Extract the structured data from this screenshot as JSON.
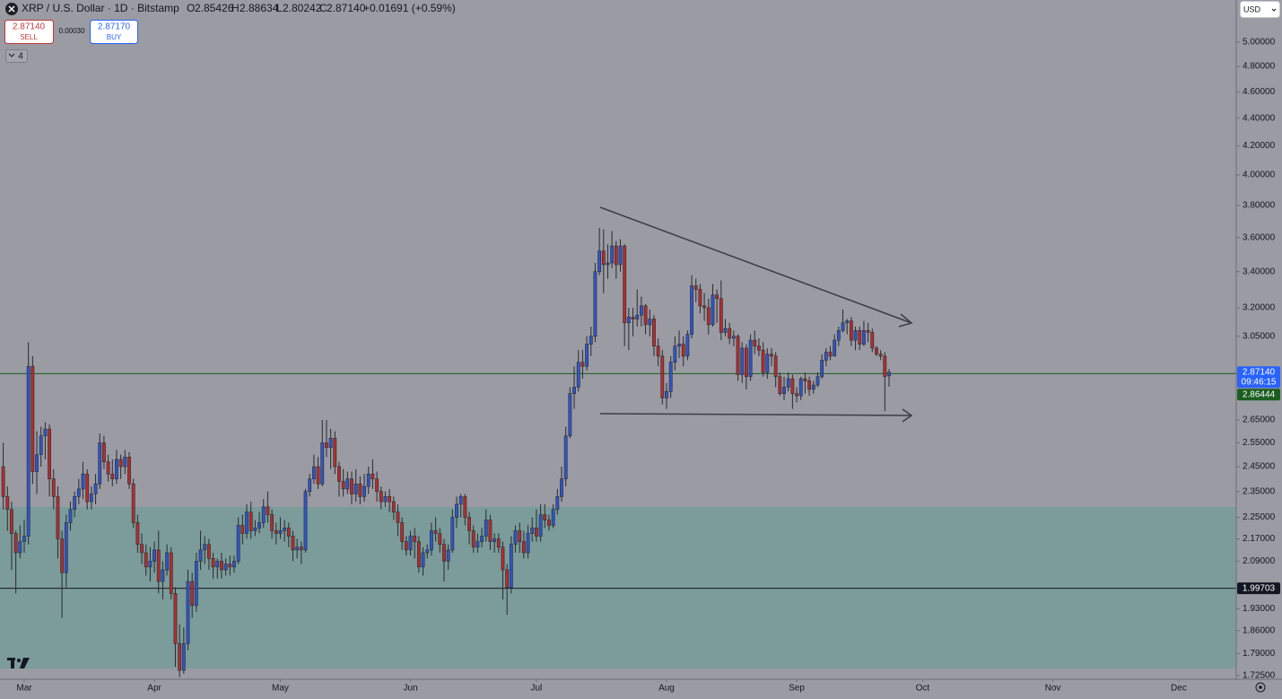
{
  "header": {
    "title": "XRP / U.S. Dollar · 1D · Bitstamp",
    "o_label": "O",
    "o": "2.85426",
    "h_label": "H",
    "h": "2.88634",
    "l_label": "L",
    "l": "2.80242",
    "c_label": "C",
    "c": "2.87140",
    "change": "+0.01691 (+0.59%)",
    "sell_price": "2.87140",
    "sell": "SELL",
    "spread": "0.00030",
    "buy_price": "2.87170",
    "buy": "BUY",
    "indicators": "4",
    "currency": "USD"
  },
  "chart_data": {
    "type": "candlestick",
    "log_scale": true,
    "up_color": "#2f56c8",
    "down_color": "#b32d2d",
    "xlim": [
      -0.77,
      293.7
    ],
    "xticks": [
      {
        "value": 5,
        "label": "Mar"
      },
      {
        "value": 36,
        "label": "Apr"
      },
      {
        "value": 66,
        "label": "May"
      },
      {
        "value": 97,
        "label": "Jun"
      },
      {
        "value": 127,
        "label": "Jul"
      },
      {
        "value": 158,
        "label": "Aug"
      },
      {
        "value": 189,
        "label": "Sep"
      },
      {
        "value": 219,
        "label": "Oct"
      },
      {
        "value": 250,
        "label": "Nov"
      },
      {
        "value": 280,
        "label": "Dec"
      }
    ],
    "ylim": [
      1.714,
      5.367
    ],
    "yticks": [
      {
        "value": 1.725,
        "label": "1.72500"
      },
      {
        "value": 1.79,
        "label": "1.79000"
      },
      {
        "value": 1.86,
        "label": "1.86000"
      },
      {
        "value": 1.93,
        "label": "1.93000"
      },
      {
        "value": 2.09,
        "label": "2.09000"
      },
      {
        "value": 2.17,
        "label": "2.17000"
      },
      {
        "value": 2.25,
        "label": "2.25000"
      },
      {
        "value": 2.35,
        "label": "2.35000"
      },
      {
        "value": 2.45,
        "label": "2.45000"
      },
      {
        "value": 2.55,
        "label": "2.55000"
      },
      {
        "value": 2.65,
        "label": "2.65000"
      },
      {
        "value": 3.05,
        "label": "3.05000"
      },
      {
        "value": 3.2,
        "label": "3.20000"
      },
      {
        "value": 3.4,
        "label": "3.40000"
      },
      {
        "value": 3.6,
        "label": "3.60000"
      },
      {
        "value": 3.8,
        "label": "3.80000"
      },
      {
        "value": 4.0,
        "label": "4.00000"
      },
      {
        "value": 4.2,
        "label": "4.20000"
      },
      {
        "value": 4.4,
        "label": "4.40000"
      },
      {
        "value": 4.6,
        "label": "4.60000"
      },
      {
        "value": 4.8,
        "label": "4.80000"
      },
      {
        "value": 5.0,
        "label": "5.00000"
      }
    ],
    "price_labels": [
      {
        "value": 2.8714,
        "label": "2.87140",
        "sub": "09:46:15",
        "color": "#2962ff",
        "line": false
      },
      {
        "value": 2.86444,
        "label": "2.86444",
        "color": "#1b5e20",
        "line": true
      },
      {
        "value": 1.99703,
        "label": "1.99703",
        "color": "#131722",
        "line": true
      }
    ],
    "candles": [
      [
        2.45,
        2.55,
        2.28,
        2.33
      ],
      [
        2.33,
        2.37,
        2.2,
        2.28
      ],
      [
        2.28,
        2.31,
        2.06,
        2.19
      ],
      [
        2.19,
        2.2,
        1.98,
        2.12
      ],
      [
        2.12,
        2.22,
        2.1,
        2.16
      ],
      [
        2.16,
        2.24,
        2.12,
        2.18
      ],
      [
        2.18,
        3.02,
        2.15,
        2.9
      ],
      [
        2.9,
        2.95,
        2.38,
        2.43
      ],
      [
        2.43,
        2.6,
        2.34,
        2.5
      ],
      [
        2.5,
        2.62,
        2.45,
        2.58
      ],
      [
        2.58,
        2.64,
        2.48,
        2.61
      ],
      [
        2.61,
        2.63,
        2.33,
        2.4
      ],
      [
        2.4,
        2.44,
        2.28,
        2.33
      ],
      [
        2.33,
        2.37,
        2.1,
        2.17
      ],
      [
        2.17,
        2.2,
        1.9,
        2.05
      ],
      [
        2.05,
        2.26,
        2.0,
        2.23
      ],
      [
        2.23,
        2.31,
        2.2,
        2.28
      ],
      [
        2.28,
        2.35,
        2.25,
        2.33
      ],
      [
        2.33,
        2.4,
        2.3,
        2.36
      ],
      [
        2.36,
        2.47,
        2.32,
        2.42
      ],
      [
        2.42,
        2.44,
        2.28,
        2.31
      ],
      [
        2.31,
        2.37,
        2.28,
        2.34
      ],
      [
        2.34,
        2.42,
        2.3,
        2.38
      ],
      [
        2.38,
        2.59,
        2.36,
        2.55
      ],
      [
        2.55,
        2.58,
        2.44,
        2.47
      ],
      [
        2.47,
        2.5,
        2.39,
        2.42
      ],
      [
        2.42,
        2.48,
        2.37,
        2.4
      ],
      [
        2.4,
        2.52,
        2.38,
        2.48
      ],
      [
        2.48,
        2.5,
        2.4,
        2.45
      ],
      [
        2.45,
        2.52,
        2.42,
        2.49
      ],
      [
        2.49,
        2.51,
        2.36,
        2.38
      ],
      [
        2.38,
        2.4,
        2.21,
        2.23
      ],
      [
        2.23,
        2.26,
        2.12,
        2.15
      ],
      [
        2.15,
        2.19,
        2.08,
        2.12
      ],
      [
        2.12,
        2.15,
        2.04,
        2.07
      ],
      [
        2.07,
        2.14,
        2.02,
        2.09
      ],
      [
        2.09,
        2.16,
        2.05,
        2.13
      ],
      [
        2.13,
        2.2,
        1.98,
        2.02
      ],
      [
        2.02,
        2.09,
        1.96,
        2.06
      ],
      [
        2.06,
        2.15,
        2.04,
        2.12
      ],
      [
        2.12,
        2.14,
        1.96,
        1.98
      ],
      [
        1.98,
        2.0,
        1.75,
        1.82
      ],
      [
        1.82,
        1.88,
        1.72,
        1.74
      ],
      [
        1.74,
        1.87,
        1.73,
        1.82
      ],
      [
        1.82,
        2.06,
        1.8,
        2.02
      ],
      [
        2.02,
        2.05,
        1.9,
        1.94
      ],
      [
        1.94,
        2.12,
        1.92,
        2.09
      ],
      [
        2.09,
        2.2,
        2.06,
        2.13
      ],
      [
        2.13,
        2.18,
        2.08,
        2.15
      ],
      [
        2.15,
        2.17,
        2.06,
        2.1
      ],
      [
        2.1,
        2.12,
        2.03,
        2.07
      ],
      [
        2.07,
        2.1,
        2.03,
        2.09
      ],
      [
        2.09,
        2.12,
        2.03,
        2.06
      ],
      [
        2.06,
        2.1,
        2.04,
        2.08
      ],
      [
        2.08,
        2.11,
        2.04,
        2.07
      ],
      [
        2.07,
        2.11,
        2.05,
        2.09
      ],
      [
        2.09,
        2.25,
        2.08,
        2.22
      ],
      [
        2.22,
        2.26,
        2.15,
        2.19
      ],
      [
        2.19,
        2.3,
        2.17,
        2.27
      ],
      [
        2.27,
        2.31,
        2.17,
        2.2
      ],
      [
        2.2,
        2.24,
        2.18,
        2.21
      ],
      [
        2.21,
        2.27,
        2.19,
        2.23
      ],
      [
        2.23,
        2.32,
        2.21,
        2.29
      ],
      [
        2.29,
        2.35,
        2.23,
        2.26
      ],
      [
        2.26,
        2.28,
        2.17,
        2.2
      ],
      [
        2.2,
        2.23,
        2.15,
        2.19
      ],
      [
        2.19,
        2.25,
        2.17,
        2.2
      ],
      [
        2.2,
        2.24,
        2.16,
        2.21
      ],
      [
        2.21,
        2.23,
        2.14,
        2.18
      ],
      [
        2.18,
        2.2,
        2.09,
        2.13
      ],
      [
        2.13,
        2.17,
        2.1,
        2.14
      ],
      [
        2.14,
        2.16,
        2.08,
        2.13
      ],
      [
        2.13,
        2.36,
        2.12,
        2.35
      ],
      [
        2.35,
        2.42,
        2.33,
        2.4
      ],
      [
        2.4,
        2.5,
        2.38,
        2.45
      ],
      [
        2.45,
        2.49,
        2.36,
        2.38
      ],
      [
        2.38,
        2.65,
        2.37,
        2.55
      ],
      [
        2.55,
        2.65,
        2.49,
        2.53
      ],
      [
        2.53,
        2.61,
        2.44,
        2.57
      ],
      [
        2.57,
        2.6,
        2.42,
        2.45
      ],
      [
        2.45,
        2.47,
        2.33,
        2.39
      ],
      [
        2.39,
        2.44,
        2.33,
        2.36
      ],
      [
        2.36,
        2.43,
        2.34,
        2.4
      ],
      [
        2.4,
        2.43,
        2.3,
        2.34
      ],
      [
        2.34,
        2.44,
        2.31,
        2.38
      ],
      [
        2.38,
        2.41,
        2.3,
        2.33
      ],
      [
        2.33,
        2.42,
        2.31,
        2.37
      ],
      [
        2.37,
        2.45,
        2.34,
        2.42
      ],
      [
        2.42,
        2.48,
        2.36,
        2.4
      ],
      [
        2.4,
        2.43,
        2.31,
        2.35
      ],
      [
        2.35,
        2.37,
        2.28,
        2.31
      ],
      [
        2.31,
        2.35,
        2.29,
        2.33
      ],
      [
        2.33,
        2.36,
        2.27,
        2.31
      ],
      [
        2.31,
        2.33,
        2.24,
        2.27
      ],
      [
        2.27,
        2.3,
        2.18,
        2.23
      ],
      [
        2.23,
        2.25,
        2.13,
        2.16
      ],
      [
        2.16,
        2.18,
        2.11,
        2.13
      ],
      [
        2.13,
        2.2,
        2.11,
        2.18
      ],
      [
        2.18,
        2.21,
        2.1,
        2.16
      ],
      [
        2.16,
        2.18,
        2.05,
        2.07
      ],
      [
        2.07,
        2.14,
        2.04,
        2.12
      ],
      [
        2.12,
        2.15,
        2.1,
        2.13
      ],
      [
        2.13,
        2.23,
        2.11,
        2.2
      ],
      [
        2.2,
        2.25,
        2.16,
        2.19
      ],
      [
        2.19,
        2.21,
        2.12,
        2.15
      ],
      [
        2.15,
        2.17,
        2.02,
        2.09
      ],
      [
        2.09,
        2.15,
        2.06,
        2.13
      ],
      [
        2.13,
        2.28,
        2.12,
        2.25
      ],
      [
        2.25,
        2.33,
        2.21,
        2.3
      ],
      [
        2.3,
        2.34,
        2.25,
        2.33
      ],
      [
        2.33,
        2.34,
        2.22,
        2.25
      ],
      [
        2.25,
        2.27,
        2.15,
        2.2
      ],
      [
        2.2,
        2.22,
        2.12,
        2.14
      ],
      [
        2.14,
        2.19,
        2.12,
        2.16
      ],
      [
        2.16,
        2.21,
        2.14,
        2.18
      ],
      [
        2.18,
        2.28,
        2.16,
        2.24
      ],
      [
        2.24,
        2.26,
        2.13,
        2.16
      ],
      [
        2.16,
        2.19,
        2.12,
        2.17
      ],
      [
        2.17,
        2.19,
        2.12,
        2.14
      ],
      [
        2.14,
        2.16,
        1.96,
        2.06
      ],
      [
        2.06,
        2.08,
        1.91,
        2.0
      ],
      [
        2.0,
        2.18,
        1.98,
        2.15
      ],
      [
        2.15,
        2.22,
        2.12,
        2.2
      ],
      [
        2.2,
        2.23,
        2.12,
        2.16
      ],
      [
        2.16,
        2.2,
        2.1,
        2.12
      ],
      [
        2.12,
        2.22,
        2.1,
        2.19
      ],
      [
        2.19,
        2.25,
        2.16,
        2.21
      ],
      [
        2.21,
        2.28,
        2.16,
        2.18
      ],
      [
        2.18,
        2.3,
        2.16,
        2.26
      ],
      [
        2.26,
        2.3,
        2.21,
        2.24
      ],
      [
        2.24,
        2.26,
        2.2,
        2.22
      ],
      [
        2.22,
        2.3,
        2.21,
        2.28
      ],
      [
        2.28,
        2.36,
        2.26,
        2.33
      ],
      [
        2.33,
        2.45,
        2.31,
        2.4
      ],
      [
        2.4,
        2.62,
        2.37,
        2.58
      ],
      [
        2.58,
        2.8,
        2.57,
        2.77
      ],
      [
        2.77,
        2.9,
        2.7,
        2.8
      ],
      [
        2.8,
        2.98,
        2.78,
        2.92
      ],
      [
        2.92,
        2.98,
        2.84,
        2.9
      ],
      [
        2.9,
        3.05,
        2.88,
        3.01
      ],
      [
        3.01,
        3.1,
        2.95,
        3.05
      ],
      [
        3.05,
        3.45,
        3.02,
        3.4
      ],
      [
        3.4,
        3.66,
        3.38,
        3.52
      ],
      [
        3.52,
        3.65,
        3.28,
        3.44
      ],
      [
        3.44,
        3.56,
        3.36,
        3.45
      ],
      [
        3.45,
        3.64,
        3.42,
        3.55
      ],
      [
        3.55,
        3.58,
        3.36,
        3.44
      ],
      [
        3.44,
        3.59,
        3.4,
        3.55
      ],
      [
        3.55,
        3.56,
        3.0,
        3.12
      ],
      [
        3.12,
        3.2,
        2.98,
        3.15
      ],
      [
        3.15,
        3.2,
        3.05,
        3.14
      ],
      [
        3.14,
        3.3,
        3.1,
        3.16
      ],
      [
        3.16,
        3.26,
        3.1,
        3.21
      ],
      [
        3.21,
        3.22,
        3.06,
        3.11
      ],
      [
        3.11,
        3.19,
        3.05,
        3.14
      ],
      [
        3.14,
        3.16,
        2.95,
        3.0
      ],
      [
        3.0,
        3.04,
        2.9,
        2.95
      ],
      [
        2.95,
        2.98,
        2.72,
        2.75
      ],
      [
        2.75,
        2.82,
        2.7,
        2.78
      ],
      [
        2.78,
        2.95,
        2.75,
        2.92
      ],
      [
        2.92,
        3.05,
        2.88,
        3.0
      ],
      [
        3.0,
        3.08,
        2.94,
        3.01
      ],
      [
        3.01,
        3.05,
        2.9,
        2.95
      ],
      [
        2.95,
        3.08,
        2.93,
        3.06
      ],
      [
        3.06,
        3.38,
        3.04,
        3.32
      ],
      [
        3.32,
        3.36,
        3.23,
        3.3
      ],
      [
        3.3,
        3.33,
        3.17,
        3.21
      ],
      [
        3.21,
        3.28,
        3.13,
        3.2
      ],
      [
        3.2,
        3.25,
        3.06,
        3.11
      ],
      [
        3.11,
        3.33,
        3.1,
        3.27
      ],
      [
        3.27,
        3.3,
        3.12,
        3.25
      ],
      [
        3.25,
        3.35,
        3.03,
        3.07
      ],
      [
        3.07,
        3.14,
        3.05,
        3.09
      ],
      [
        3.09,
        3.12,
        3.01,
        3.04
      ],
      [
        3.04,
        3.08,
        3.0,
        3.05
      ],
      [
        3.05,
        3.06,
        2.83,
        2.86
      ],
      [
        2.86,
        3.02,
        2.82,
        2.99
      ],
      [
        2.99,
        3.01,
        2.79,
        2.85
      ],
      [
        2.85,
        3.06,
        2.83,
        3.03
      ],
      [
        3.03,
        3.08,
        2.96,
        3.0
      ],
      [
        3.0,
        3.04,
        2.95,
        2.98
      ],
      [
        2.98,
        3.02,
        2.85,
        2.87
      ],
      [
        2.87,
        2.99,
        2.84,
        2.96
      ],
      [
        2.96,
        2.99,
        2.9,
        2.95
      ],
      [
        2.95,
        2.97,
        2.8,
        2.85
      ],
      [
        2.85,
        2.87,
        2.76,
        2.77
      ],
      [
        2.77,
        2.85,
        2.74,
        2.8
      ],
      [
        2.8,
        2.87,
        2.78,
        2.84
      ],
      [
        2.84,
        2.86,
        2.7,
        2.77
      ],
      [
        2.77,
        2.8,
        2.73,
        2.76
      ],
      [
        2.76,
        2.85,
        2.74,
        2.84
      ],
      [
        2.84,
        2.87,
        2.77,
        2.83
      ],
      [
        2.83,
        2.85,
        2.76,
        2.79
      ],
      [
        2.79,
        2.83,
        2.77,
        2.81
      ],
      [
        2.81,
        2.87,
        2.8,
        2.85
      ],
      [
        2.85,
        2.96,
        2.84,
        2.93
      ],
      [
        2.93,
        2.99,
        2.9,
        2.97
      ],
      [
        2.97,
        3.0,
        2.93,
        2.95
      ],
      [
        2.95,
        3.06,
        2.95,
        3.03
      ],
      [
        3.03,
        3.1,
        3.0,
        3.08
      ],
      [
        3.08,
        3.19,
        3.07,
        3.12
      ],
      [
        3.12,
        3.14,
        3.06,
        3.13
      ],
      [
        3.13,
        3.15,
        3.0,
        3.03
      ],
      [
        3.03,
        3.1,
        2.98,
        3.08
      ],
      [
        3.08,
        3.1,
        2.98,
        3.01
      ],
      [
        3.01,
        3.13,
        3.0,
        3.08
      ],
      [
        3.08,
        3.12,
        3.02,
        3.07
      ],
      [
        3.07,
        3.09,
        2.97,
        2.99
      ],
      [
        2.99,
        3.0,
        2.95,
        2.96
      ],
      [
        2.96,
        2.98,
        2.93,
        2.95
      ],
      [
        2.95,
        2.97,
        2.69,
        2.85
      ],
      [
        2.85426,
        2.88634,
        2.80242,
        2.8714
      ]
    ]
  }
}
